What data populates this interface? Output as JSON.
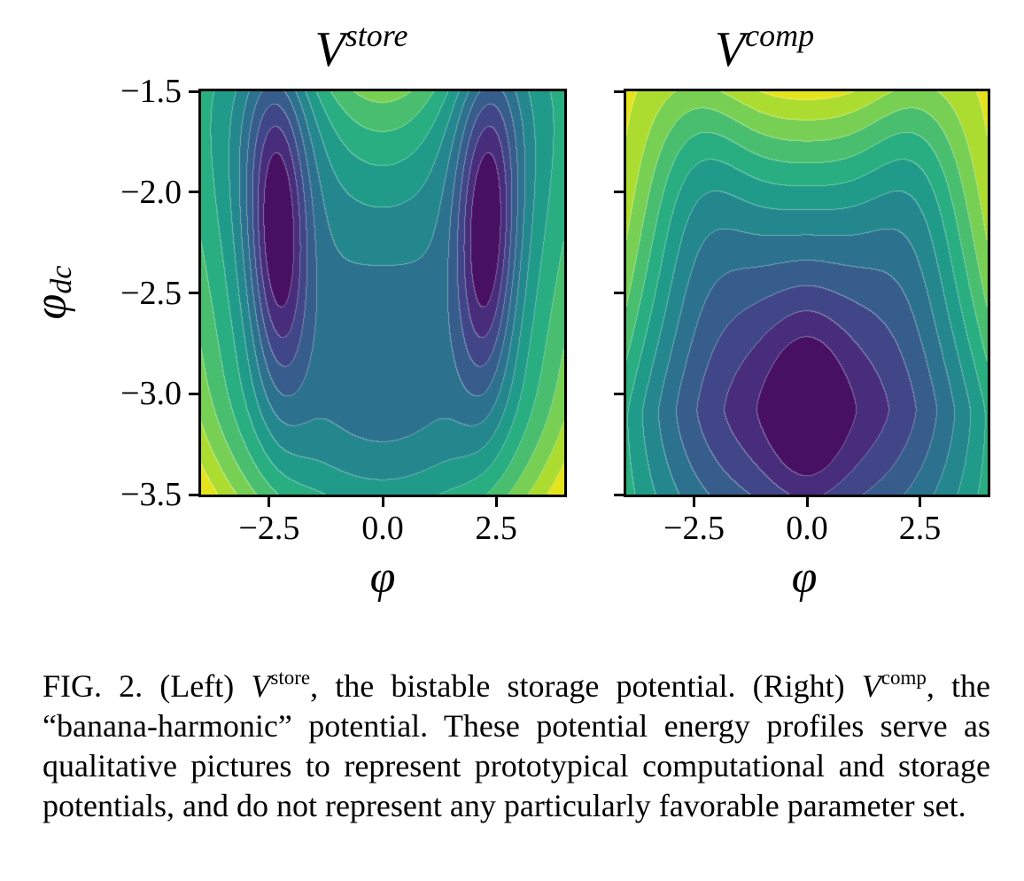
{
  "figure": {
    "caption": {
      "fig_label": "FIG. 2.",
      "s1": " (Left) ",
      "v1": "V",
      "sup1": "store",
      "s2": ", the bistable storage potential. (Right) ",
      "v2": "V",
      "sup2": "comp",
      "s3": ", the “banana-harmonic” potential.  These potential energy profiles serve as qualitative pictures to represent prototypical computational and storage potentials, and do not represent any particularly favorable parameter set."
    }
  },
  "left_plot": {
    "title_base": "V",
    "title_sup": "store",
    "xlabel": "φ",
    "ylabel_base": "φ",
    "ylabel_sub": "dc"
  },
  "right_plot": {
    "title_base": "V",
    "title_sup": "comp",
    "xlabel": "φ"
  },
  "colors": {
    "background": "#ffffff",
    "axis": "#000000",
    "viridis_stops": [
      [
        0.0,
        "#440154"
      ],
      [
        0.0625,
        "#48186a"
      ],
      [
        0.125,
        "#472d7b"
      ],
      [
        0.1875,
        "#424086"
      ],
      [
        0.25,
        "#3b528b"
      ],
      [
        0.3125,
        "#33638d"
      ],
      [
        0.375,
        "#2c728e"
      ],
      [
        0.4375,
        "#26828e"
      ],
      [
        0.5,
        "#21918c"
      ],
      [
        0.5625,
        "#1fa088"
      ],
      [
        0.625,
        "#28ae80"
      ],
      [
        0.6875,
        "#3fb974"
      ],
      [
        0.75,
        "#5ec962"
      ],
      [
        0.8125,
        "#84d44b"
      ],
      [
        0.875,
        "#addc30"
      ],
      [
        0.9375,
        "#d8e219"
      ],
      [
        1.0,
        "#fde725"
      ]
    ]
  },
  "chart_data": [
    {
      "type": "heatmap",
      "subtype": "filled-contour",
      "title": "V^store",
      "xlabel": "φ",
      "ylabel": "φ_dc",
      "colormap": "viridis",
      "n_levels": 12,
      "x_range": [
        -4.0,
        4.0
      ],
      "y_range": [
        -1.5,
        -3.5
      ],
      "x_tick_values": [
        -2.5,
        0.0,
        2.5
      ],
      "x_tick_labels": [
        "−2.5",
        "0.0",
        "2.5"
      ],
      "y_tick_values": [
        -1.5,
        -2.0,
        -2.5,
        -3.0,
        -3.5
      ],
      "y_tick_labels": [
        "−1.5",
        "−2.0",
        "−2.5",
        "−3.0",
        "−3.5"
      ],
      "features": {
        "description": "bistable double-well storage potential",
        "minima": [
          [
            -2.3,
            -2.25
          ],
          [
            2.3,
            -2.25
          ]
        ],
        "saddle": [
          0.0,
          -2.25
        ],
        "high_regions": "bottom corners (highest), top center ridge"
      },
      "render_model": {
        "xnorm": 4,
        "y0": -2.9,
        "b0": 4.3,
        "au": 2.755,
        "ad": 6.1,
        "yexp": 2,
        "ax2": -1.99,
        "ax1": -13.55,
        "ax0": -17.55,
        "dips": [
          {
            "amp": 3.6,
            "yc": -1.5,
            "wy": 0.8,
            "xc": 2.35,
            "wx": 1.3
          }
        ],
        "wells": [
          {
            "amp": 5.2,
            "cx": -2.3,
            "cy": -2.25,
            "sx": 0.62,
            "sy": 0.75,
            "th": 0.28
          },
          {
            "amp": 5.2,
            "cx": 2.3,
            "cy": -2.25,
            "sx": 0.62,
            "sy": 0.75,
            "th": -0.28
          }
        ]
      }
    },
    {
      "type": "heatmap",
      "subtype": "filled-contour",
      "title": "V^comp",
      "xlabel": "φ",
      "ylabel": "φ_dc",
      "colormap": "viridis",
      "n_levels": 12,
      "x_range": [
        -4.0,
        4.0
      ],
      "y_range": [
        -1.5,
        -3.5
      ],
      "x_tick_values": [
        -2.5,
        0.0,
        2.5
      ],
      "x_tick_labels": [
        "−2.5",
        "0.0",
        "2.5"
      ],
      "y_tick_values": [
        -1.5,
        -2.0,
        -2.5,
        -3.0,
        -3.5
      ],
      "y_tick_labels": [],
      "features": {
        "description": "banana-harmonic computational potential",
        "minima": [
          [
            0.0,
            -3.08
          ]
        ],
        "high_regions": "entire top edge (lightest band), bottom corners moderate"
      },
      "render_model": {
        "xnorm": 4,
        "y0": -3.08,
        "b0": 0.8,
        "au": 5.39,
        "ad": 6.6,
        "yexp": 1.5,
        "ax2": -3.81,
        "ax1": -21.5,
        "ax0": -23.68,
        "dips": [
          {
            "amp": 2.2,
            "yc": -1.85,
            "wy": 0.75,
            "xc": 2.4,
            "wx": 1.2
          }
        ],
        "wells": [
          {
            "amp": 1.6,
            "cx": 0.0,
            "cy": -3.08,
            "sx": 0.8,
            "sy": 0.5,
            "th": 0
          }
        ]
      }
    }
  ]
}
